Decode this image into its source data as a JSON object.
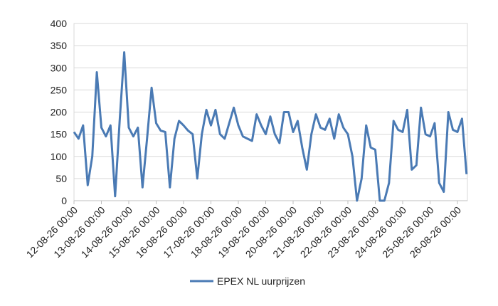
{
  "chart_data": {
    "type": "line",
    "categories": [
      "12-08-26 00:00",
      null,
      null,
      null,
      null,
      null,
      "13-08-26 00:00",
      null,
      null,
      null,
      null,
      null,
      "14-08-26 00:00",
      null,
      null,
      null,
      null,
      null,
      "15-08-26 00:00",
      null,
      null,
      null,
      null,
      null,
      "16-08-26 00:00",
      null,
      null,
      null,
      null,
      null,
      "17-08-26 00:00",
      null,
      null,
      null,
      null,
      null,
      "18-08-26 00:00",
      null,
      null,
      null,
      null,
      null,
      "19-08-26 00:00",
      null,
      null,
      null,
      null,
      null,
      "20-08-26 00:00",
      null,
      null,
      null,
      null,
      null,
      "21-08-26 00:00",
      null,
      null,
      null,
      null,
      null,
      "22-08-26 00:00",
      null,
      null,
      null,
      null,
      null,
      "23-08-26 00:00",
      null,
      null,
      null,
      null,
      null,
      "24-08-26 00:00",
      null,
      null,
      null,
      null,
      null,
      "25-08-26 00:00",
      null,
      null,
      null,
      null,
      null,
      "26-08-26 00:00",
      null,
      null
    ],
    "series": [
      {
        "name": "EPEX NL uurprijzen",
        "color": "#4a7ab4",
        "values": [
          155,
          140,
          170,
          35,
          100,
          290,
          165,
          145,
          170,
          10,
          180,
          335,
          165,
          145,
          165,
          30,
          140,
          255,
          175,
          158,
          155,
          30,
          140,
          180,
          170,
          158,
          150,
          50,
          150,
          205,
          170,
          205,
          150,
          140,
          175,
          210,
          170,
          145,
          140,
          135,
          195,
          170,
          150,
          190,
          150,
          130,
          200,
          200,
          155,
          180,
          120,
          70,
          150,
          195,
          165,
          160,
          185,
          140,
          195,
          165,
          150,
          100,
          0,
          50,
          170,
          120,
          115,
          0,
          0,
          40,
          180,
          160,
          155,
          205,
          70,
          80,
          210,
          150,
          145,
          175,
          40,
          20,
          200,
          160,
          155,
          185,
          60
        ]
      }
    ],
    "ylim": [
      0,
      400
    ],
    "yticks": [
      0,
      50,
      100,
      150,
      200,
      250,
      300,
      350,
      400
    ],
    "grid": true,
    "legend": "bottom"
  }
}
